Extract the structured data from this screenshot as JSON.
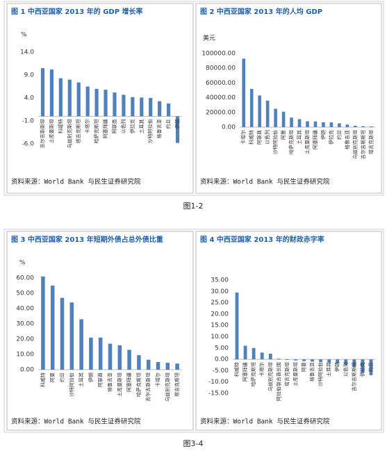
{
  "chart_data": [
    {
      "type": "bar",
      "title": "图 1 中西亚国家 2013 年的 GDP 增长率",
      "y_label": "%",
      "categories": [
        "吉尔吉斯斯坦",
        "土库曼斯坦",
        "科威特",
        "乌兹别克斯坦",
        "塔吉克斯坦",
        "卡塔尔",
        "哈萨克斯坦",
        "阿塞拜疆",
        "阿联酋",
        "以色列",
        "伊拉克",
        "土耳其",
        "沙特阿拉伯",
        "格鲁吉亚",
        "约旦",
        "伊朗"
      ],
      "values": [
        10.5,
        10.2,
        8.3,
        8.0,
        7.4,
        6.5,
        6.0,
        5.8,
        5.2,
        4.7,
        4.2,
        4.1,
        4.0,
        3.3,
        2.8,
        -5.8
      ],
      "color": "#4f81bd",
      "ylim": [
        -6,
        14
      ],
      "yticks": [
        {
          "value": 14,
          "label": "14.0"
        },
        {
          "value": 9,
          "label": "9.0"
        },
        {
          "value": 4,
          "label": "4.0"
        },
        {
          "value": -1,
          "label": "-1.0"
        },
        {
          "value": -6,
          "label": "-6.0"
        }
      ],
      "grid": false,
      "source": "资料来源：World Bank 与民生证券研究院"
    },
    {
      "type": "bar",
      "title": "图 2 中西亚国家 2013 年的人均 GDP",
      "y_label": "美元",
      "categories": [
        "卡塔尔",
        "科威特",
        "阿联酋",
        "以色列",
        "沙特阿拉伯",
        "阿曼",
        "哈萨克斯坦",
        "土耳其",
        "土库曼斯坦",
        "阿塞拜疆",
        "伊朗",
        "伊拉克",
        "约旦",
        "格鲁吉亚",
        "乌兹别克斯坦",
        "吉尔吉斯斯坦",
        "塔吉克斯坦"
      ],
      "values": [
        93000,
        52000,
        43000,
        36000,
        25000,
        21000,
        13000,
        10900,
        7900,
        7800,
        6600,
        6500,
        5200,
        3600,
        1900,
        1300,
        1000
      ],
      "color": "#4f81bd",
      "ylim": [
        0,
        100000
      ],
      "yticks": [
        {
          "value": 100000,
          "label": "100000.00"
        },
        {
          "value": 80000,
          "label": "80000.00"
        },
        {
          "value": 60000,
          "label": "60000.00"
        },
        {
          "value": 40000,
          "label": "40000.00"
        },
        {
          "value": 20000,
          "label": "20000.00"
        },
        {
          "value": 0,
          "label": "0.00"
        }
      ],
      "grid": false,
      "source": "资料来源：World Bank 与民生证券研究院"
    },
    {
      "type": "bar",
      "title": "图 3 中西亚国家 2013 年短期外债占总外债比重",
      "y_label": "%",
      "categories": [
        "科威特",
        "阿曼",
        "约旦",
        "沙特阿拉伯",
        "土耳其",
        "伊朗",
        "阿联酋",
        "格鲁吉亚",
        "土库曼斯坦",
        "阿塞拜疆",
        "哈萨克斯坦",
        "吉尔吉斯斯坦",
        "卡塔尔",
        "乌兹别克斯坦",
        "塔吉克斯坦"
      ],
      "values": [
        61,
        55,
        47,
        44,
        33,
        21,
        21,
        17,
        16,
        13,
        9.5,
        6.5,
        5,
        4.5,
        4
      ],
      "color": "#4f81bd",
      "ylim": [
        0,
        60
      ],
      "yticks": [
        {
          "value": 60,
          "label": "60.00"
        },
        {
          "value": 50,
          "label": "50.00"
        },
        {
          "value": 40,
          "label": "40.00"
        },
        {
          "value": 30,
          "label": "30.00"
        },
        {
          "value": 20,
          "label": "20.00"
        },
        {
          "value": 10,
          "label": "10.00"
        },
        {
          "value": 0,
          "label": "0.00"
        }
      ],
      "grid": false,
      "source": "资料来源：World Bank 与民生证券研究院"
    },
    {
      "type": "bar",
      "title": "图 4 中西亚国家 2013 年的财政赤字率",
      "categories": [
        "科威特",
        "阿塞拜疆",
        "哈萨克斯坦",
        "卡塔尔",
        "乌兹别克斯坦",
        "阿拉伯联合酋长国",
        "塔吉克斯坦",
        "土库曼斯坦",
        "阿曼",
        "格鲁吉亚",
        "沙特阿拉伯",
        "土耳其",
        "伊朗",
        "以色列",
        "吉尔吉斯斯坦",
        "伊拉克",
        "约旦"
      ],
      "values": [
        29.5,
        6,
        5,
        3,
        2.5,
        0.3,
        -0.3,
        -0.5,
        -0.8,
        -1,
        -1.2,
        -1.5,
        -1.8,
        -2.5,
        -3.5,
        -6,
        -7
      ],
      "color": "#4f81bd",
      "ylim": [
        -15,
        35
      ],
      "yticks": [
        {
          "value": 35,
          "label": "35.00"
        },
        {
          "value": 30,
          "label": "30.00"
        },
        {
          "value": 25,
          "label": "25.00"
        },
        {
          "value": 20,
          "label": "20.00"
        },
        {
          "value": 15,
          "label": "15.00"
        },
        {
          "value": 10,
          "label": "10.00"
        },
        {
          "value": 5,
          "label": "5.00"
        },
        {
          "value": 0,
          "label": "0.00"
        },
        {
          "value": -5,
          "label": "-5.00"
        },
        {
          "value": -10,
          "label": "-10.00"
        },
        {
          "value": -15,
          "label": "-15.00"
        }
      ],
      "grid": false,
      "source": "资料来源：World Bank 与民生证券研究院"
    }
  ],
  "captions": [
    "图1-2",
    "图3-4"
  ]
}
